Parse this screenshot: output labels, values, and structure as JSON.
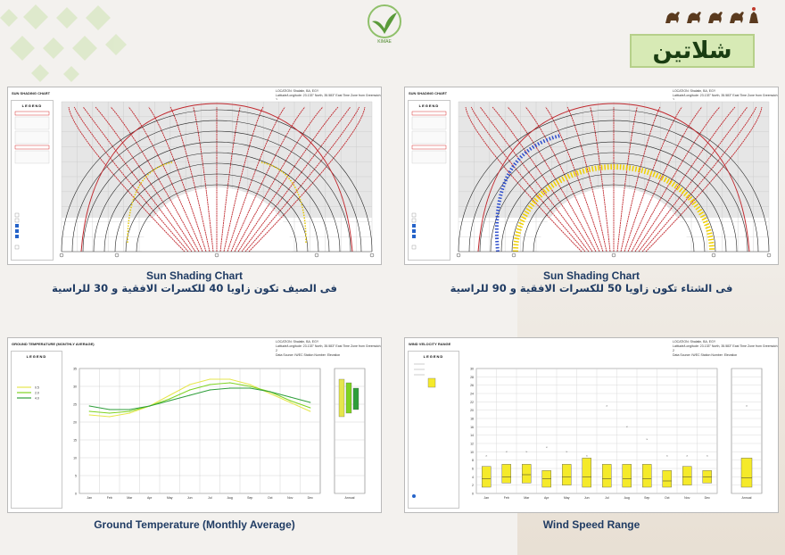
{
  "header": {
    "title": "شلاتين",
    "logo_text": "KIMAE",
    "brand_color": "#6aa84f"
  },
  "panels": {
    "sun_summer": {
      "chart_title": "SUN SHADING CHART",
      "location_label": "LOCATION:",
      "location_value": "Shalatin, BA, EGY",
      "latlon_label": "Latitude/Longitude:",
      "latlon_value": "23.133° North, 35.583° East",
      "timezone_label": "Time Zone from Greenwich",
      "timezone_value": "2",
      "source_label": "Data Source:",
      "source_value": "IWEC Station Number:",
      "elevation_label": "Elevation",
      "legend": "LEGEND",
      "caption_en": "Sun Shading Chart",
      "caption_ar": "فى الصيف تكون زاويا 40 للكسرات الافقية و 30 للراسية"
    },
    "sun_winter": {
      "chart_title": "SUN SHADING CHART",
      "location_label": "LOCATION:",
      "location_value": "Shalatin, BA, EGY",
      "latlon_label": "Latitude/Longitude:",
      "latlon_value": "23.133° North, 35.583° East",
      "timezone_label": "Time Zone from Greenwich",
      "timezone_value": "2",
      "source_label": "Data Source:",
      "source_value": "IWEC Station Number:",
      "elevation_label": "Elevation",
      "legend": "LEGEND",
      "caption_en": "Sun Shading Chart",
      "caption_ar": "فى الشتاء تكون زاويا 50 للكسرات الافقية و 90 للراسية"
    },
    "ground_temp": {
      "chart_title": "GROUND TEMPERATURE (MONTHLY AVERAGE)",
      "location_label": "LOCATION:",
      "location_value": "Shalatin, BA, EGY",
      "latlon_label": "Latitude/Longitude:",
      "latlon_value": "23.133° North, 35.583° East",
      "timezone_label": "Time Zone from Greenwich",
      "timezone_value": "2",
      "source_label": "Data Source:",
      "source_value": "IWEC Station Number:",
      "elevation_label": "Elevation",
      "legend": "LEGEND",
      "caption_en": "Ground Temperature (Monthly Average)"
    },
    "wind_speed": {
      "chart_title": "WIND VELOCITY RANGE",
      "location_label": "LOCATION:",
      "location_value": "Shalatin, BA, EGY",
      "latlon_label": "Latitude/Longitude:",
      "latlon_value": "23.133° North, 35.583° East",
      "timezone_label": "Time Zone from Greenwich",
      "timezone_value": "2",
      "source_label": "Data Source:",
      "source_value": "IWEC Station Number:",
      "elevation_label": "Elevation",
      "legend": "LEGEND",
      "caption_en": "Wind Speed Range"
    }
  },
  "chart_data": [
    {
      "type": "line",
      "categories": [
        "Jan",
        "Feb",
        "Mar",
        "Apr",
        "May",
        "Jun",
        "Jul",
        "Aug",
        "Sep",
        "Oct",
        "Nov",
        "Dec"
      ],
      "annual_label": "Annual",
      "ylim": [
        0,
        35
      ],
      "series": [
        {
          "name": "0.5",
          "color": "#e6e64c",
          "values": [
            22,
            21.5,
            22.5,
            24.5,
            27.5,
            30.5,
            32,
            32,
            30.5,
            28,
            25.5,
            23
          ]
        },
        {
          "name": "2.0",
          "color": "#7ed321",
          "values": [
            23,
            22.5,
            23,
            24.5,
            26.5,
            29,
            30.5,
            31,
            30,
            28.5,
            26,
            24
          ]
        },
        {
          "name": "4.0",
          "color": "#2e9e3a",
          "values": [
            24.5,
            23.5,
            23.5,
            24.5,
            26,
            27.5,
            29,
            29.5,
            29.5,
            28.5,
            27,
            25.5
          ]
        }
      ]
    },
    {
      "type": "bar",
      "categories": [
        "Jan",
        "Feb",
        "Mar",
        "Apr",
        "May",
        "Jun",
        "Jul",
        "Aug",
        "Sep",
        "Oct",
        "Nov",
        "Dec"
      ],
      "annual_label": "Annual",
      "ylim": [
        0,
        30
      ],
      "series": [
        {
          "name": "max",
          "values": [
            9,
            10,
            10,
            11,
            10,
            9,
            21,
            16,
            13,
            9,
            9,
            9
          ]
        },
        {
          "name": "range_high",
          "values": [
            6.5,
            7,
            7,
            5.5,
            7,
            8.5,
            7,
            7,
            7,
            5.5,
            6.5,
            5.5
          ]
        },
        {
          "name": "range_low",
          "values": [
            1.5,
            2.5,
            2.5,
            1.5,
            2,
            1.5,
            1.5,
            1.5,
            1.5,
            1.5,
            2,
            2.5
          ]
        },
        {
          "name": "mean",
          "values": [
            3.5,
            4,
            4.5,
            3.5,
            4,
            4,
            3.5,
            3.5,
            3.5,
            3,
            4,
            4
          ]
        }
      ]
    }
  ]
}
